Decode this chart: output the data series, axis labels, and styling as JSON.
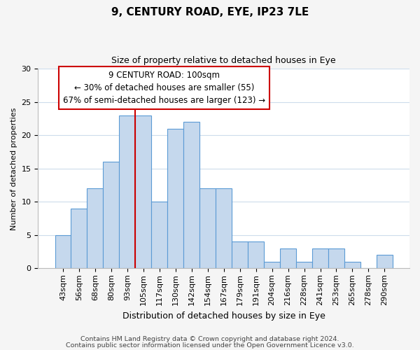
{
  "title": "9, CENTURY ROAD, EYE, IP23 7LE",
  "subtitle": "Size of property relative to detached houses in Eye",
  "xlabel": "Distribution of detached houses by size in Eye",
  "ylabel": "Number of detached properties",
  "bar_labels": [
    "43sqm",
    "56sqm",
    "68sqm",
    "80sqm",
    "93sqm",
    "105sqm",
    "117sqm",
    "130sqm",
    "142sqm",
    "154sqm",
    "167sqm",
    "179sqm",
    "191sqm",
    "204sqm",
    "216sqm",
    "228sqm",
    "241sqm",
    "253sqm",
    "265sqm",
    "278sqm",
    "290sqm"
  ],
  "bar_values": [
    5,
    9,
    12,
    16,
    23,
    23,
    10,
    21,
    22,
    12,
    12,
    4,
    4,
    1,
    3,
    1,
    3,
    3,
    1,
    0,
    2
  ],
  "bar_color": "#c5d8ed",
  "bar_edge_color": "#5b9bd5",
  "vline_color": "#cc0000",
  "vline_x_index": 5,
  "ylim": [
    0,
    30
  ],
  "yticks": [
    0,
    5,
    10,
    15,
    20,
    25,
    30
  ],
  "annotation_line1": "9 CENTURY ROAD: 100sqm",
  "annotation_line2": "← 30% of detached houses are smaller (55)",
  "annotation_line3": "67% of semi-detached houses are larger (123) →",
  "footer1": "Contains HM Land Registry data © Crown copyright and database right 2024.",
  "footer2": "Contains public sector information licensed under the Open Government Licence v3.0.",
  "background_color": "#f5f5f5",
  "plot_background_color": "#ffffff",
  "grid_color": "#cddcec",
  "title_fontsize": 11,
  "subtitle_fontsize": 9,
  "ylabel_fontsize": 8,
  "xlabel_fontsize": 9,
  "tick_fontsize": 8,
  "annot_fontsize": 8.5,
  "footer_fontsize": 6.8
}
